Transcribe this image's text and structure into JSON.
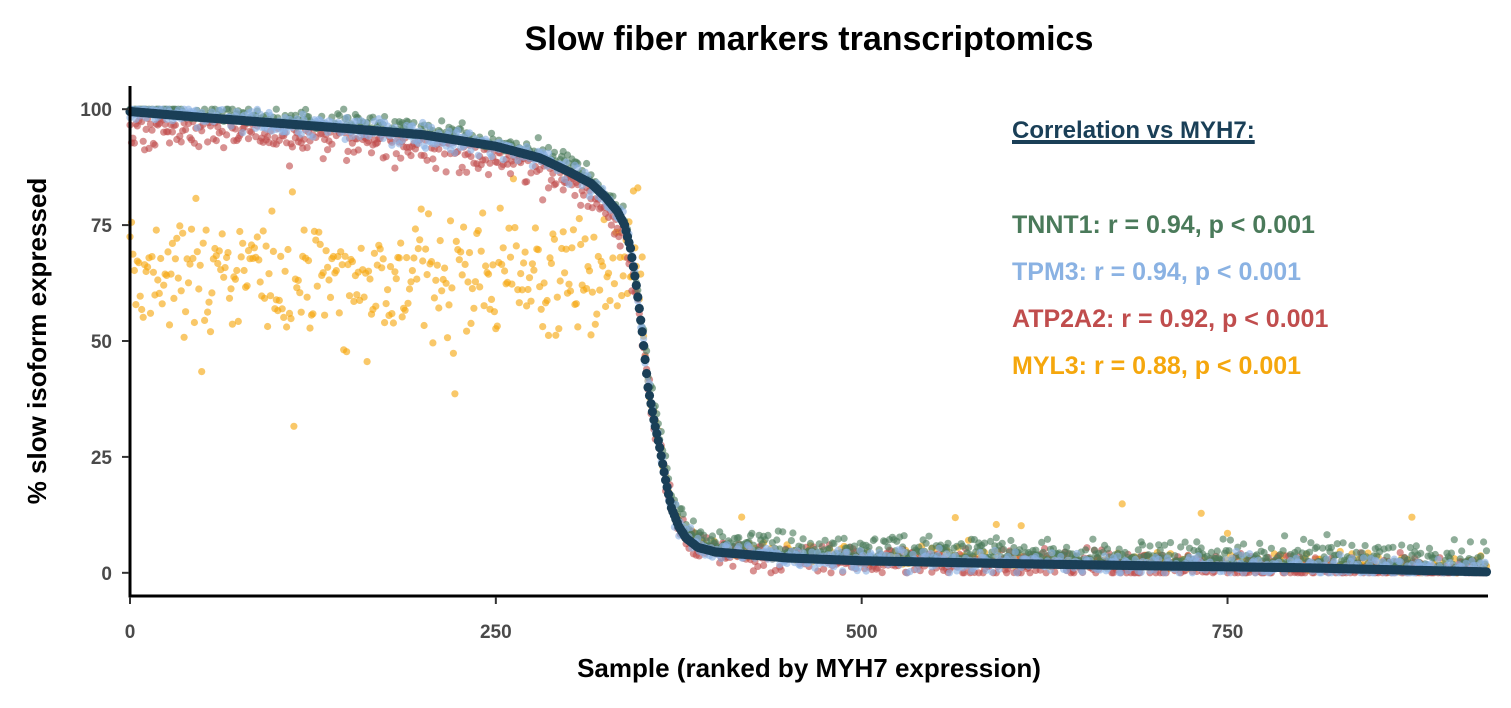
{
  "chart_data": {
    "type": "scatter",
    "title": "Slow fiber markers transcriptomics",
    "xlabel": "Sample (ranked by MYH7 expression)",
    "ylabel": "% slow isoform expressed",
    "xlim": [
      0,
      928
    ],
    "ylim": [
      -5,
      105
    ],
    "x_ticks": [
      0,
      250,
      500,
      750
    ],
    "y_ticks": [
      0,
      25,
      50,
      75,
      100
    ],
    "grid": false,
    "n_samples": 928,
    "reference_line": {
      "name": "MYH7",
      "color": "#1a3f57",
      "profile": [
        [
          0,
          99.5
        ],
        [
          50,
          98.2
        ],
        [
          100,
          97.0
        ],
        [
          150,
          95.8
        ],
        [
          200,
          94.5
        ],
        [
          250,
          92.0
        ],
        [
          280,
          89.5
        ],
        [
          300,
          86.5
        ],
        [
          315,
          84.0
        ],
        [
          325,
          81.0
        ],
        [
          333,
          78.0
        ],
        [
          338,
          75.0
        ],
        [
          342,
          70.0
        ],
        [
          346,
          62.0
        ],
        [
          350,
          52.0
        ],
        [
          354,
          40.0
        ],
        [
          358,
          33.0
        ],
        [
          362,
          27.0
        ],
        [
          366,
          20.0
        ],
        [
          370,
          14.0
        ],
        [
          375,
          10.0
        ],
        [
          380,
          7.5
        ],
        [
          388,
          5.5
        ],
        [
          400,
          4.5
        ],
        [
          450,
          3.2
        ],
        [
          500,
          2.6
        ],
        [
          600,
          2.0
        ],
        [
          700,
          1.5
        ],
        [
          800,
          1.1
        ],
        [
          928,
          0.2
        ]
      ]
    },
    "series": [
      {
        "name": "TNNT1",
        "color": "#4a7a5a",
        "r": 0.94,
        "p": "< 0.001"
      },
      {
        "name": "TPM3",
        "color": "#8ab2e3",
        "r": 0.94,
        "p": "< 0.001"
      },
      {
        "name": "ATP2A2",
        "color": "#c04d4d",
        "r": 0.92,
        "p": "< 0.001"
      },
      {
        "name": "MYL3",
        "color": "#f5a70d",
        "r": 0.88,
        "p": "< 0.001"
      }
    ]
  },
  "annotation": {
    "header": "Correlation vs MYH7:",
    "header_color": "#1a3f57",
    "lines": [
      {
        "text": "TNNT1: r = 0.94, p < 0.001",
        "color": "#4a7a5a"
      },
      {
        "text": "TPM3: r = 0.94, p < 0.001",
        "color": "#8ab2e3"
      },
      {
        "text": "ATP2A2: r = 0.92, p < 0.001",
        "color": "#c04d4d"
      },
      {
        "text": "MYL3: r = 0.88, p < 0.001",
        "color": "#f5a70d"
      }
    ]
  }
}
